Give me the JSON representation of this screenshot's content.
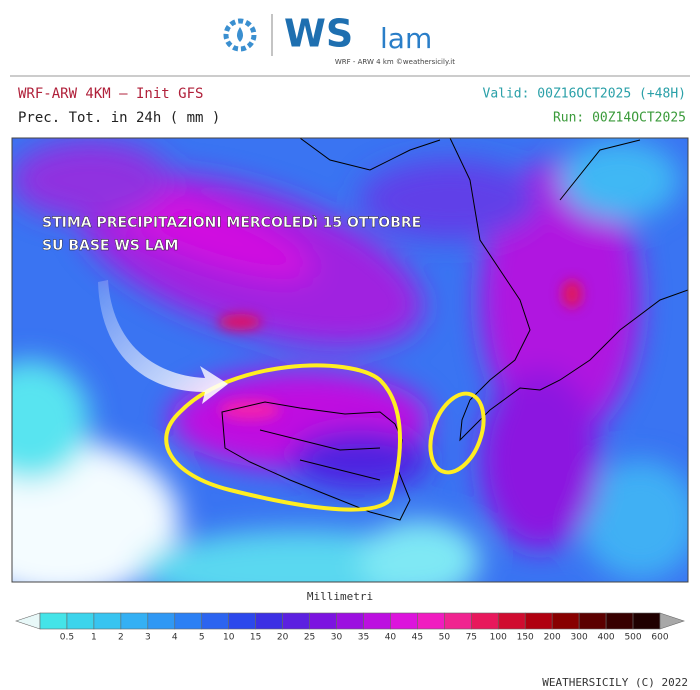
{
  "logo": {
    "ws": "WS",
    "lam": "lam",
    "tagline": "WRF - ARW 4 km ©weathersicily.it"
  },
  "info": {
    "model": "WRF-ARW 4KM — Init GFS",
    "field": "Prec. Tot. in 24h ( mm )",
    "valid": "Valid: 00Z16OCT2025 (+48H)",
    "run": "Run: 00Z14OCT2025"
  },
  "annotation": {
    "lines": [
      "STIMA PRECIPITAZIONI MERCOLEDì 15 OTTOBRE",
      "SU BASE WS LAM"
    ]
  },
  "legend": {
    "title": "Millimetri",
    "labels": [
      "0.5",
      "1",
      "2",
      "3",
      "4",
      "5",
      "10",
      "15",
      "20",
      "25",
      "30",
      "35",
      "40",
      "45",
      "50",
      "75",
      "100",
      "150",
      "200",
      "300",
      "400",
      "500",
      "600"
    ],
    "colors": [
      "#e8f8f8",
      "#44e4e8",
      "#3cd4ec",
      "#38c4f0",
      "#34b0f4",
      "#3098f4",
      "#2c80f4",
      "#2c64f0",
      "#2c48ec",
      "#3c30e4",
      "#5c20e0",
      "#7c14e0",
      "#9c10e0",
      "#bc10e0",
      "#dc14dc",
      "#f01cc0",
      "#f02490",
      "#e8185c",
      "#d00c30",
      "#b00010",
      "#880000",
      "#5c0000",
      "#380000",
      "#200000",
      "#a8a8a8"
    ]
  },
  "footer": "WEATHERSICILY (C) 2022"
}
